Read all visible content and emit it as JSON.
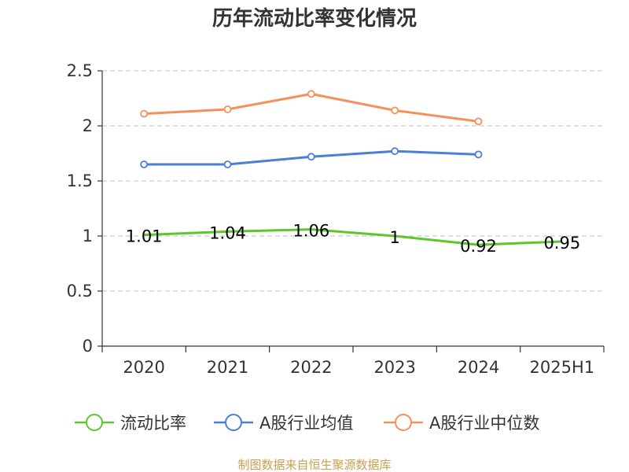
{
  "chart_data": {
    "type": "line",
    "title": "历年流动比率变化情况",
    "categories": [
      "2020",
      "2021",
      "2022",
      "2023",
      "2024",
      "2025H1"
    ],
    "ylim": [
      0,
      2.5
    ],
    "y_ticks": [
      "0",
      "0.5",
      "1",
      "1.5",
      "2",
      "2.5"
    ],
    "grid": true,
    "legend_position": "bottom",
    "series": [
      {
        "name": "流动比率",
        "color": "#5cc72c",
        "values": [
          1.01,
          1.04,
          1.06,
          1,
          0.92,
          0.95
        ],
        "labels": [
          "1.01",
          "1.04",
          "1.06",
          "1",
          "0.92",
          "0.95"
        ]
      },
      {
        "name": "A股行业均值",
        "color": "#4b7fd6",
        "values": [
          1.65,
          1.65,
          1.72,
          1.77,
          1.74,
          null
        ]
      },
      {
        "name": "A股行业中位数",
        "color": "#f5905a",
        "values": [
          2.11,
          2.15,
          2.29,
          2.14,
          2.04,
          null
        ]
      }
    ]
  },
  "footer": {
    "source": "制图数据来自恒生聚源数据库"
  }
}
